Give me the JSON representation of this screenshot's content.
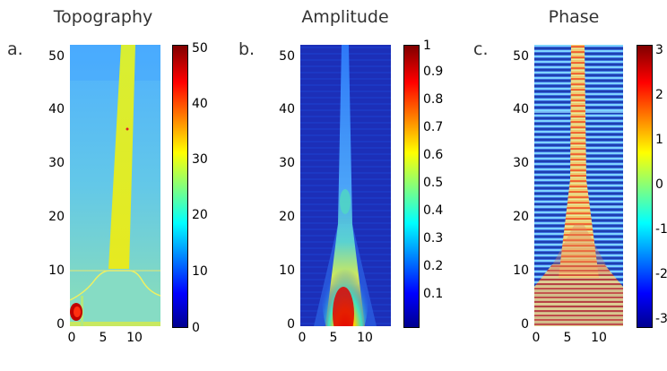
{
  "panels": [
    {
      "letter": "a.",
      "title": "Topography",
      "y_ticks": [
        "0",
        "10",
        "20",
        "30",
        "40",
        "50"
      ],
      "x_ticks": [
        "0",
        "5",
        "10"
      ],
      "colorbar_ticks": [
        "0",
        "10",
        "20",
        "30",
        "40",
        "50"
      ]
    },
    {
      "letter": "b.",
      "title": "Amplitude",
      "y_ticks": [
        "0",
        "10",
        "20",
        "30",
        "40",
        "50"
      ],
      "x_ticks": [
        "0",
        "5",
        "10"
      ],
      "colorbar_ticks": [
        "0.1",
        "0.2",
        "0.3",
        "0.4",
        "0.5",
        "0.6",
        "0.7",
        "0.8",
        "0.9",
        "1"
      ]
    },
    {
      "letter": "c.",
      "title": "Phase",
      "y_ticks": [
        "0",
        "10",
        "20",
        "30",
        "40",
        "50"
      ],
      "x_ticks": [
        "0",
        "5",
        "10"
      ],
      "colorbar_ticks": [
        "-3",
        "-2",
        "-1",
        "0",
        "1",
        "2",
        "3"
      ]
    }
  ],
  "colormap": "jet",
  "colors": {
    "jet_dark_blue": "#00008f",
    "jet_blue": "#0000ff",
    "jet_cyan": "#00ffff",
    "jet_yellow": "#ffff00",
    "jet_red": "#ff0000",
    "jet_dark_red": "#800000"
  }
}
